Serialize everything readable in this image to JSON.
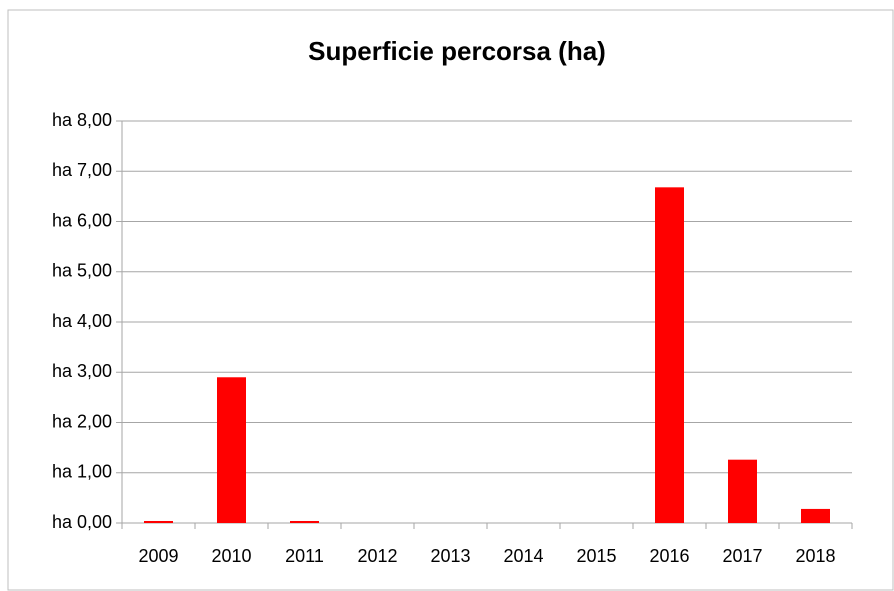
{
  "chart_data": {
    "type": "bar",
    "title": "Superficie percorsa (ha)",
    "categories": [
      "2009",
      "2010",
      "2011",
      "2012",
      "2013",
      "2014",
      "2015",
      "2016",
      "2017",
      "2018"
    ],
    "values": [
      0.04,
      2.9,
      0.04,
      0,
      0,
      0,
      0,
      6.68,
      1.26,
      0.28
    ],
    "color": "#ff0000",
    "ylim": [
      0,
      8
    ],
    "yticks": [
      {
        "value": 0,
        "label": "ha 0,00"
      },
      {
        "value": 1,
        "label": "ha 1,00"
      },
      {
        "value": 2,
        "label": "ha 2,00"
      },
      {
        "value": 3,
        "label": "ha 3,00"
      },
      {
        "value": 4,
        "label": "ha 4,00"
      },
      {
        "value": 5,
        "label": "ha 5,00"
      },
      {
        "value": 6,
        "label": "ha 6,00"
      },
      {
        "value": 7,
        "label": "ha 7,00"
      },
      {
        "value": 8,
        "label": "ha 8,00"
      }
    ],
    "grid": true
  }
}
